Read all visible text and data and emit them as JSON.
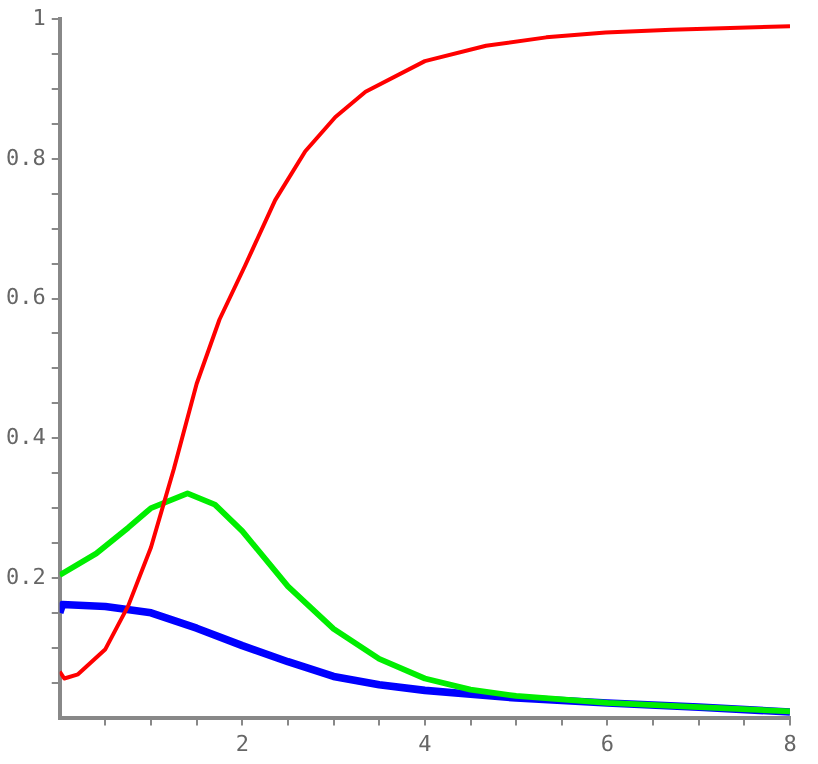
{
  "chart_data": {
    "type": "line",
    "xlim": [
      0,
      8
    ],
    "ylim": [
      0,
      1
    ],
    "xticks": [
      {
        "value": 0.5,
        "label": null
      },
      {
        "value": 1,
        "label": null
      },
      {
        "value": 1.5,
        "label": null
      },
      2,
      {
        "value": 2.5,
        "label": null
      },
      {
        "value": 3,
        "label": null
      },
      {
        "value": 3.5,
        "label": null
      },
      4,
      {
        "value": 4.5,
        "label": null
      },
      {
        "value": 5,
        "label": null
      },
      {
        "value": 5.5,
        "label": null
      },
      6,
      {
        "value": 6.5,
        "label": null
      },
      {
        "value": 7,
        "label": null
      },
      {
        "value": 7.5,
        "label": null
      },
      8
    ],
    "yticks": [
      {
        "value": 0.05,
        "label": null
      },
      {
        "value": 0.1,
        "label": null
      },
      {
        "value": 0.15,
        "label": null
      },
      0.2,
      {
        "value": 0.25,
        "label": null
      },
      {
        "value": 0.3,
        "label": null
      },
      {
        "value": 0.35,
        "label": null
      },
      0.4,
      {
        "value": 0.45,
        "label": null
      },
      {
        "value": 0.5,
        "label": null
      },
      {
        "value": 0.55,
        "label": null
      },
      0.6,
      {
        "value": 0.65,
        "label": null
      },
      {
        "value": 0.7,
        "label": null
      },
      {
        "value": 0.75,
        "label": null
      },
      0.8,
      {
        "value": 0.85,
        "label": null
      },
      {
        "value": 0.9,
        "label": null
      },
      {
        "value": 0.95,
        "label": null
      },
      1
    ],
    "grid": false,
    "legend": false,
    "marker": "none",
    "line_style": "solid",
    "series": [
      {
        "color": "#ff0000",
        "x": [
          0,
          0.05,
          0.2,
          0.5,
          0.75,
          1,
          1.25,
          1.5,
          1.75,
          2.03,
          2.36,
          2.69,
          3.02,
          3.35,
          4,
          4.67,
          5.33,
          5.98,
          6.7,
          8
        ],
        "values": [
          0.066,
          0.056,
          0.062,
          0.098,
          0.16,
          0.244,
          0.356,
          0.478,
          0.57,
          0.647,
          0.741,
          0.811,
          0.86,
          0.896,
          0.94,
          0.962,
          0.974,
          0.981,
          0.985,
          0.99
        ]
      },
      {
        "color": "#00ee00",
        "x": [
          0,
          0.4,
          0.75,
          1,
          1.4,
          1.7,
          2,
          2.5,
          3,
          3.5,
          4,
          4.5,
          5,
          6,
          7,
          8
        ],
        "values": [
          0.204,
          0.235,
          0.272,
          0.3,
          0.321,
          0.305,
          0.267,
          0.188,
          0.127,
          0.084,
          0.056,
          0.04,
          0.031,
          0.021,
          0.015,
          0.009
        ]
      },
      {
        "color": "#0000ff",
        "x": [
          0,
          0.03,
          0.5,
          1,
          1.5,
          2,
          2.5,
          3,
          3.5,
          4,
          5,
          6,
          7,
          8
        ],
        "values": [
          0.15,
          0.162,
          0.159,
          0.15,
          0.128,
          0.103,
          0.08,
          0.059,
          0.047,
          0.039,
          0.028,
          0.021,
          0.015,
          0.008
        ]
      }
    ]
  }
}
